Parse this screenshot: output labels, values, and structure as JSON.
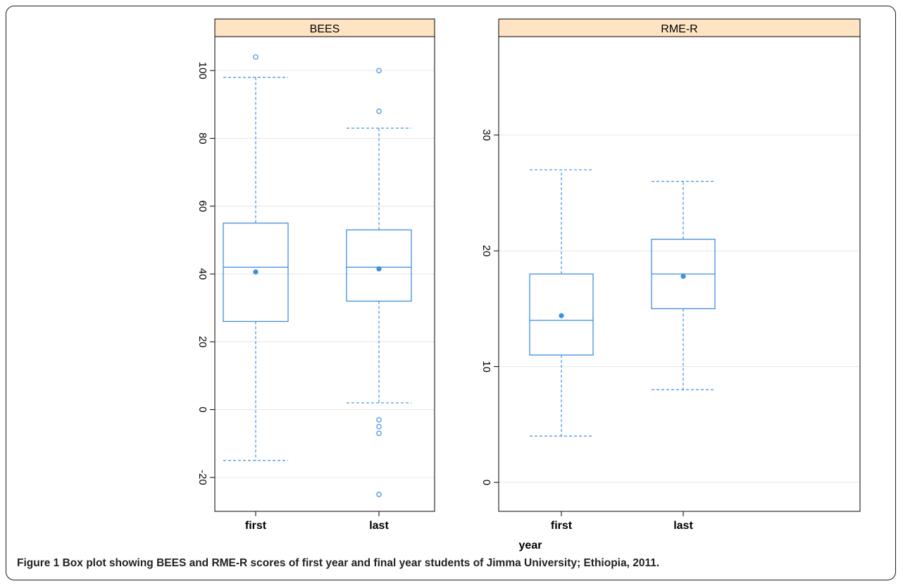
{
  "figure": {
    "caption_label": "Figure 1",
    "caption_text": "Box plot showing BEES and RME-R scores of first year and final year students of Jimma University; Ethiopia, 2011."
  },
  "colors": {
    "box": "#3d8fe0",
    "strip": "#ffe4c4",
    "grid": "#e6e6e6",
    "axis": "#000000"
  },
  "chart_data": [
    {
      "type": "box",
      "panel_title": "BEES",
      "categories": [
        "first",
        "last"
      ],
      "ylim": [
        -30,
        110
      ],
      "yticks": [
        -20,
        0,
        20,
        40,
        60,
        80,
        100
      ],
      "xlabel": "year",
      "grid": true,
      "boxes": [
        {
          "category": "first",
          "whisker_low": -15,
          "q1": 26,
          "median": 42,
          "q3": 55,
          "whisker_high": 98,
          "mean": 40.6,
          "outliers": [
            104
          ]
        },
        {
          "category": "last",
          "whisker_low": 2,
          "q1": 32,
          "median": 42,
          "q3": 53,
          "whisker_high": 83,
          "mean": 41.5,
          "outliers": [
            100,
            88,
            -3,
            -5,
            -7,
            -25
          ]
        }
      ]
    },
    {
      "type": "box",
      "panel_title": "RME-R",
      "categories": [
        "first",
        "last"
      ],
      "ylim": [
        -2.5,
        38.5
      ],
      "yticks": [
        0,
        10,
        20,
        30
      ],
      "xlabel": "year",
      "grid": true,
      "boxes": [
        {
          "category": "first",
          "whisker_low": 4,
          "q1": 11,
          "median": 14,
          "q3": 18,
          "whisker_high": 27,
          "mean": 14.4,
          "outliers": []
        },
        {
          "category": "last",
          "whisker_low": 8,
          "q1": 15,
          "median": 18,
          "q3": 21,
          "whisker_high": 26,
          "mean": 17.8,
          "outliers": []
        }
      ]
    }
  ]
}
